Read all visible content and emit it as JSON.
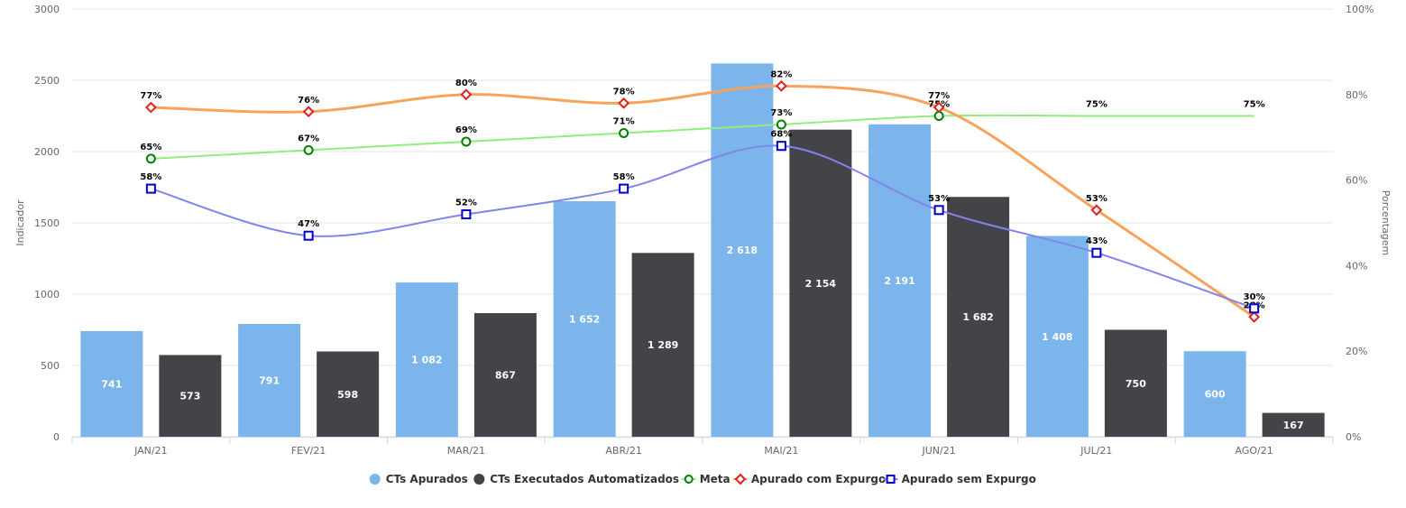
{
  "chart_data": {
    "type": "bar",
    "categories": [
      "JAN/21",
      "FEV/21",
      "MAR/21",
      "ABR/21",
      "MAI/21",
      "JUN/21",
      "JUL/21",
      "AGO/21"
    ],
    "bar_series": [
      {
        "name": "CTs Apurados",
        "color": "#7cb5ec",
        "values": [
          741,
          791,
          1082,
          1652,
          2618,
          2191,
          1408,
          600
        ],
        "labels": [
          "741",
          "791",
          "1 082",
          "1 652",
          "2 618",
          "2 191",
          "1 408",
          "600"
        ]
      },
      {
        "name": "CTs Executados Automatizados",
        "color": "#434348",
        "values": [
          573,
          598,
          867,
          1289,
          2154,
          1682,
          750,
          167
        ],
        "labels": [
          "573",
          "598",
          "867",
          "1 289",
          "2 154",
          "1 682",
          "750",
          "167"
        ]
      }
    ],
    "line_series": [
      {
        "name": "Meta",
        "color": "#90ed7d",
        "marker_color": "#008000",
        "marker": "circle",
        "values": [
          65,
          67,
          69,
          71,
          73,
          75,
          75,
          75
        ],
        "labels": [
          "65%",
          "67%",
          "69%",
          "71%",
          "73%",
          "75%",
          "75%",
          "75%"
        ],
        "markers": [
          true,
          true,
          true,
          true,
          true,
          true,
          false,
          false
        ]
      },
      {
        "name": "Apurado com Expurgo",
        "color": "#f7a35c",
        "marker_color": "#e02020",
        "marker": "diamond",
        "values": [
          77,
          76,
          80,
          78,
          82,
          77,
          53,
          28
        ],
        "labels": [
          "77%",
          "76%",
          "80%",
          "78%",
          "82%",
          "77%",
          "53%",
          "28%"
        ],
        "markers": [
          true,
          true,
          true,
          true,
          true,
          true,
          true,
          true
        ]
      },
      {
        "name": "Apurado sem Expurgo",
        "color": "#8085e9",
        "marker_color": "#0000cc",
        "marker": "square",
        "values": [
          58,
          47,
          52,
          58,
          68,
          53,
          43,
          30
        ],
        "labels": [
          "58%",
          "47%",
          "52%",
          "58%",
          "68%",
          "53%",
          "43%",
          "30%"
        ],
        "markers": [
          true,
          true,
          true,
          true,
          true,
          true,
          true,
          true
        ]
      }
    ],
    "ylabel": "Indicador",
    "ylabel_right": "Porcentagem",
    "ylim": [
      0,
      3000
    ],
    "yticks": [
      "0",
      "500",
      "1000",
      "1500",
      "2000",
      "2500",
      "3000"
    ],
    "ylim_right": [
      0,
      100
    ],
    "yticks_right": [
      "0%",
      "20%",
      "40%",
      "60%",
      "80%",
      "100%"
    ],
    "grid": true,
    "legend_position": "bottom-center"
  }
}
